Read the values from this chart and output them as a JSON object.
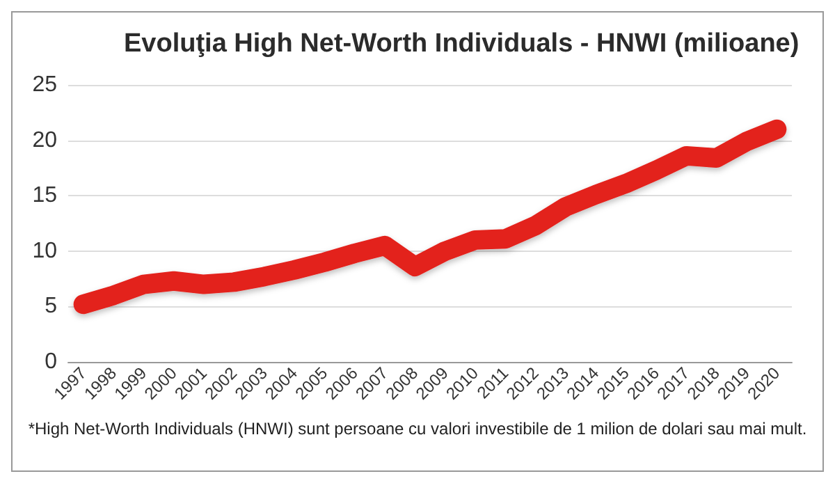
{
  "chart_data": {
    "type": "line",
    "title": "Evoluţia High Net-Worth Individuals - HNWI (milioane)",
    "categories": [
      "1997",
      "1998",
      "1999",
      "2000",
      "2001",
      "2002",
      "2003",
      "2004",
      "2005",
      "2006",
      "2007",
      "2008",
      "2009",
      "2010",
      "2011",
      "2012",
      "2013",
      "2014",
      "2015",
      "2016",
      "2017",
      "2018",
      "2019",
      "2020"
    ],
    "series": [
      {
        "color": "#e3201b",
        "values": [
          5.2,
          6.0,
          7.0,
          7.3,
          7.0,
          7.2,
          7.7,
          8.3,
          9.0,
          9.8,
          10.5,
          8.6,
          10.0,
          11.0,
          11.1,
          12.3,
          14.0,
          15.1,
          16.1,
          17.3,
          18.6,
          18.4,
          19.9,
          21.0
        ]
      }
    ],
    "ylim": [
      0,
      25
    ],
    "yticks": [
      0,
      5,
      10,
      15,
      20,
      25
    ],
    "grid": "y",
    "line_style": "solid",
    "annotations": [
      "*High Net-Worth Individuals (HNWI) sunt persoane cu valori investibile de 1 milion de dolari sau mai mult."
    ]
  }
}
